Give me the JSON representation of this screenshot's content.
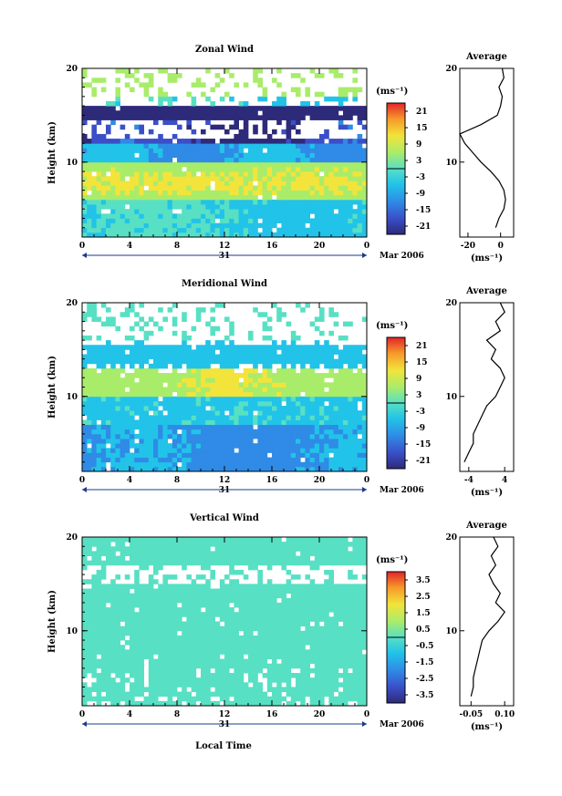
{
  "figure": {
    "xlabel": "Local Time",
    "date_label": "Mar 2006",
    "day_label": "31"
  },
  "chart_data": [
    {
      "type": "heatmap",
      "title": "Zonal Wind",
      "ylabel": "Height (km)",
      "xlabel": "Local Time",
      "x_ticks": [
        "0",
        "4",
        "8",
        "12",
        "16",
        "20",
        "0"
      ],
      "y_ticks": [
        "10",
        "20"
      ],
      "xlim": [
        0,
        24
      ],
      "ylim": [
        2,
        20
      ],
      "colorbar": {
        "unit": "(ms⁻¹)",
        "ticks": [
          "21",
          "15",
          "9",
          "3",
          "-3",
          "-9",
          "-15",
          "-21"
        ],
        "range": [
          -24,
          24
        ]
      },
      "profile": {
        "title": "Average",
        "xlabel": "(ms⁻¹)",
        "x_ticks": [
          "-20",
          "0"
        ],
        "xlim": [
          -25,
          8
        ],
        "y_ticks": [
          "10",
          "20"
        ],
        "heights": [
          3,
          4,
          5,
          6,
          7,
          8,
          9,
          10,
          11,
          12,
          13,
          14,
          15,
          16,
          17,
          18,
          19,
          20
        ],
        "values": [
          -3,
          -1,
          2,
          3,
          2,
          -1,
          -6,
          -12,
          -17,
          -22,
          -25,
          -12,
          -2,
          0,
          1,
          -1,
          2,
          1
        ]
      }
    },
    {
      "type": "heatmap",
      "title": "Meridional Wind",
      "ylabel": "Height (km)",
      "xlabel": "Local Time",
      "x_ticks": [
        "0",
        "4",
        "8",
        "12",
        "16",
        "20",
        "0"
      ],
      "y_ticks": [
        "10",
        "20"
      ],
      "xlim": [
        0,
        24
      ],
      "ylim": [
        2,
        20
      ],
      "colorbar": {
        "unit": "(ms⁻¹)",
        "ticks": [
          "21",
          "15",
          "9",
          "3",
          "-3",
          "-9",
          "-15",
          "-21"
        ],
        "range": [
          -24,
          24
        ]
      },
      "profile": {
        "title": "Average",
        "xlabel": "(ms⁻¹)",
        "x_ticks": [
          "-4",
          "4"
        ],
        "xlim": [
          -6,
          6
        ],
        "y_ticks": [
          "10",
          "20"
        ],
        "heights": [
          3,
          4,
          5,
          6,
          7,
          8,
          9,
          10,
          11,
          12,
          13,
          14,
          15,
          16,
          17,
          18,
          19,
          20
        ],
        "values": [
          -5,
          -4,
          -3,
          -3,
          -2,
          -1,
          0,
          2,
          3,
          4,
          3,
          1,
          2,
          0,
          3,
          2,
          4,
          3
        ]
      }
    },
    {
      "type": "heatmap",
      "title": "Vertical Wind",
      "ylabel": "Height (km)",
      "xlabel": "Local Time",
      "x_ticks": [
        "0",
        "4",
        "8",
        "12",
        "16",
        "20",
        "0"
      ],
      "y_ticks": [
        "10",
        "20"
      ],
      "xlim": [
        0,
        24
      ],
      "ylim": [
        2,
        20
      ],
      "colorbar": {
        "unit": "(ms⁻¹)",
        "ticks": [
          "3.5",
          "2.5",
          "1.5",
          "0.5",
          "-0.5",
          "-1.5",
          "-2.5",
          "-3.5"
        ],
        "range": [
          -4,
          4
        ]
      },
      "profile": {
        "title": "Average",
        "xlabel": "(ms⁻¹)",
        "x_ticks": [
          "-0.05",
          "0.10"
        ],
        "xlim": [
          -0.1,
          0.14
        ],
        "y_ticks": [
          "10",
          "20"
        ],
        "heights": [
          3,
          4,
          5,
          6,
          7,
          8,
          9,
          10,
          11,
          12,
          13,
          14,
          15,
          16,
          17,
          18,
          19,
          20
        ],
        "values": [
          -0.05,
          -0.04,
          -0.04,
          -0.03,
          -0.02,
          -0.01,
          0.0,
          0.03,
          0.07,
          0.1,
          0.06,
          0.08,
          0.05,
          0.03,
          0.06,
          0.04,
          0.07,
          0.05
        ]
      }
    }
  ]
}
